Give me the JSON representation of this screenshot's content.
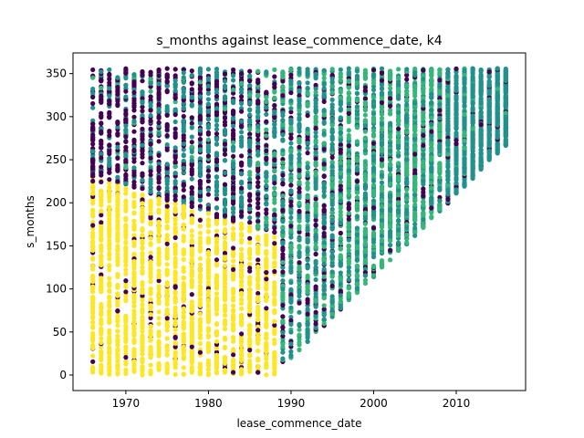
{
  "chart_data": {
    "type": "scatter",
    "title": "s_months against lease_commence_date, k4",
    "xlabel": "lease_commence_date",
    "ylabel": "s_months",
    "xlim": [
      1963.6,
      2018.4
    ],
    "ylim": [
      -18,
      374
    ],
    "x_ticks": [
      1970,
      1980,
      1990,
      2000,
      2010
    ],
    "y_ticks": [
      0,
      50,
      100,
      150,
      200,
      250,
      300,
      350
    ],
    "x_range": [
      1966,
      2016
    ],
    "y_range": [
      0,
      356
    ],
    "grid": false,
    "legend": "none",
    "clusters": [
      {
        "color": "#fde725",
        "x_range": [
          1966,
          1989
        ],
        "y_range": [
          0,
          250
        ]
      },
      {
        "color": "#440154",
        "x_range": [
          1966,
          2006
        ],
        "y_range": [
          100,
          356
        ]
      },
      {
        "color": "#21918c",
        "x_range": [
          1966,
          2016
        ],
        "y_range": [
          150,
          356
        ]
      },
      {
        "color": "#35b779",
        "x_range": [
          1988,
          2007
        ],
        "y_range": [
          20,
          356
        ]
      }
    ]
  }
}
